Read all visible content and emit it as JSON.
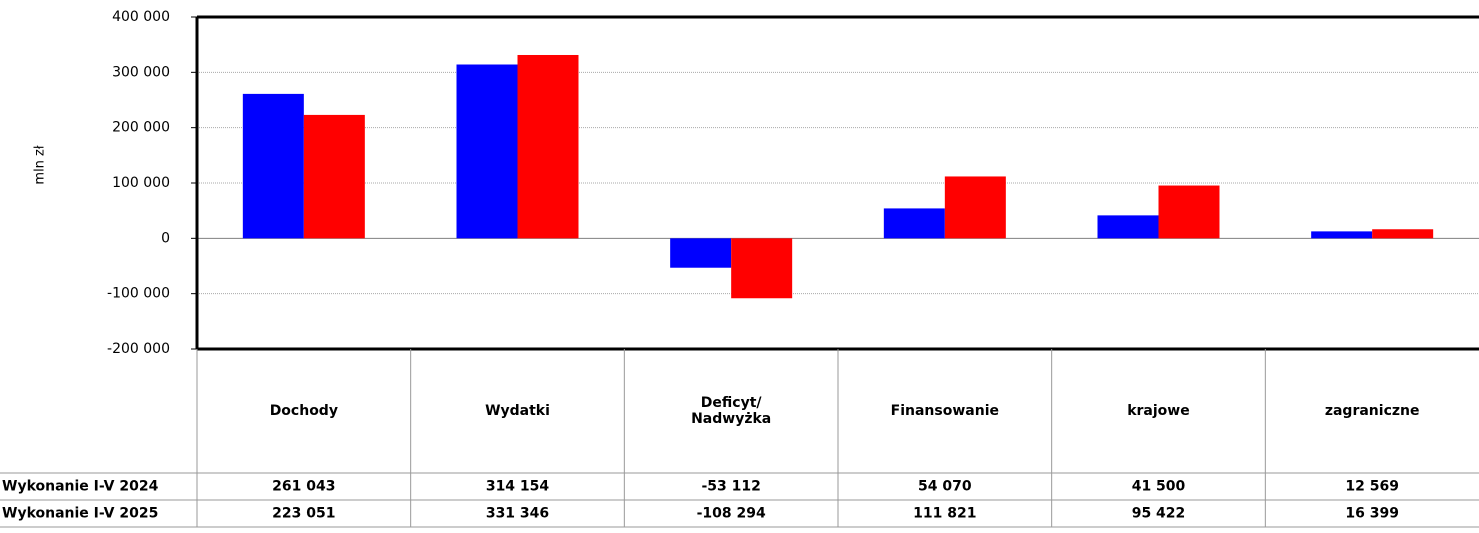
{
  "chart_data": {
    "type": "bar",
    "y_label": "mln zł",
    "categories": [
      "Dochody",
      "Wydatki",
      "Deficyt/\nNadwyżka",
      "Finansowanie",
      "krajowe",
      "zagraniczne"
    ],
    "series": [
      {
        "name": "Wykonanie I-V 2024",
        "color": "#0000ff",
        "values": [
          261043,
          314154,
          -53112,
          54070,
          41500,
          12569
        ],
        "value_labels": [
          "261 043",
          "314 154",
          "-53 112",
          "54 070",
          "41 500",
          "12 569"
        ]
      },
      {
        "name": "Wykonanie I-V 2025",
        "color": "#ff0000",
        "values": [
          223051,
          331346,
          -108294,
          111821,
          95422,
          16399
        ],
        "value_labels": [
          "223 051",
          "331 346",
          "-108 294",
          "111 821",
          "95 422",
          "16 399"
        ]
      }
    ],
    "ylim": [
      -200000,
      400000
    ],
    "yticks": [
      {
        "value": -200000,
        "label": "-200 000"
      },
      {
        "value": -100000,
        "label": "-100 000"
      },
      0,
      {
        "value": 100000,
        "label": "100 000"
      },
      {
        "value": 200000,
        "label": "200 000"
      },
      {
        "value": 300000,
        "label": "300 000"
      },
      {
        "value": 400000,
        "label": "400 000"
      }
    ],
    "grid": true
  }
}
